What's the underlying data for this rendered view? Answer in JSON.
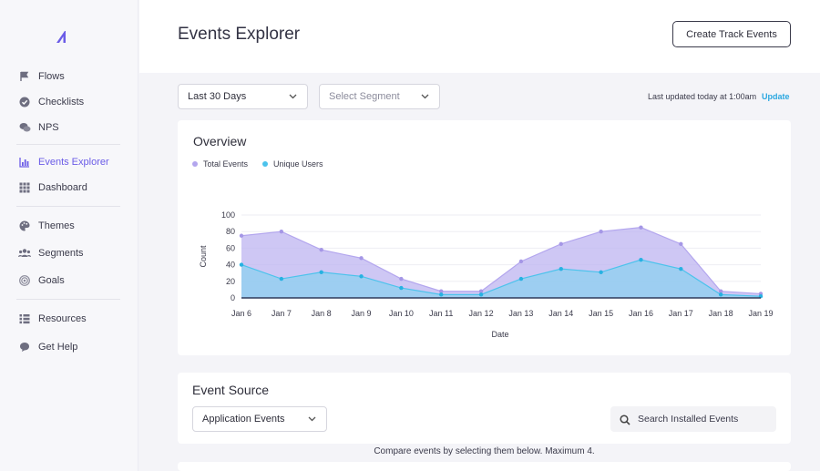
{
  "sidebar": {
    "items": [
      {
        "label": "Flows",
        "icon": "flag-icon"
      },
      {
        "label": "Checklists",
        "icon": "check-circle-icon"
      },
      {
        "label": "NPS",
        "icon": "chat-bubbles-icon"
      },
      {
        "label": "Events Explorer",
        "icon": "bar-chart-icon",
        "active": true
      },
      {
        "label": "Dashboard",
        "icon": "grid-icon"
      },
      {
        "label": "Themes",
        "icon": "palette-icon"
      },
      {
        "label": "Segments",
        "icon": "users-icon"
      },
      {
        "label": "Goals",
        "icon": "target-icon"
      },
      {
        "label": "Resources",
        "icon": "list-icon"
      },
      {
        "label": "Get Help",
        "icon": "help-bubble-icon"
      }
    ],
    "accent": "#6b5ce7"
  },
  "header": {
    "title": "Events Explorer",
    "create_label": "Create Track Events"
  },
  "filters": {
    "range_value": "Last 30 Days",
    "segment_placeholder": "Select Segment",
    "updated_text": "Last updated today at 1:00am",
    "update_link": "Update"
  },
  "overview": {
    "title": "Overview"
  },
  "chart_data": {
    "type": "area",
    "title": "",
    "xlabel": "Date",
    "ylabel": "Count",
    "ylim": [
      0,
      100
    ],
    "yticks": [
      0,
      20,
      40,
      60,
      80,
      100
    ],
    "categories": [
      "Jan 6",
      "Jan 7",
      "Jan 8",
      "Jan 9",
      "Jan 10",
      "Jan 11",
      "Jan 12",
      "Jan 13",
      "Jan 14",
      "Jan 15",
      "Jan 16",
      "Jan 17",
      "Jan 18",
      "Jan 19"
    ],
    "series": [
      {
        "name": "Total Events",
        "color": "#b3a6ee",
        "values": [
          75,
          80,
          58,
          48,
          23,
          8,
          8,
          44,
          65,
          80,
          85,
          65,
          8,
          5
        ]
      },
      {
        "name": "Unique Users",
        "color": "#4cc3ec",
        "values": [
          40,
          23,
          31,
          26,
          12,
          4,
          4,
          23,
          35,
          31,
          46,
          35,
          4,
          2
        ]
      }
    ],
    "legend": "top-left",
    "grid": true
  },
  "event_source": {
    "title": "Event Source",
    "type_value": "Application Events",
    "search_placeholder": "Search Installed Events",
    "compare_text": "Compare events by selecting them below. Maximum 4."
  }
}
